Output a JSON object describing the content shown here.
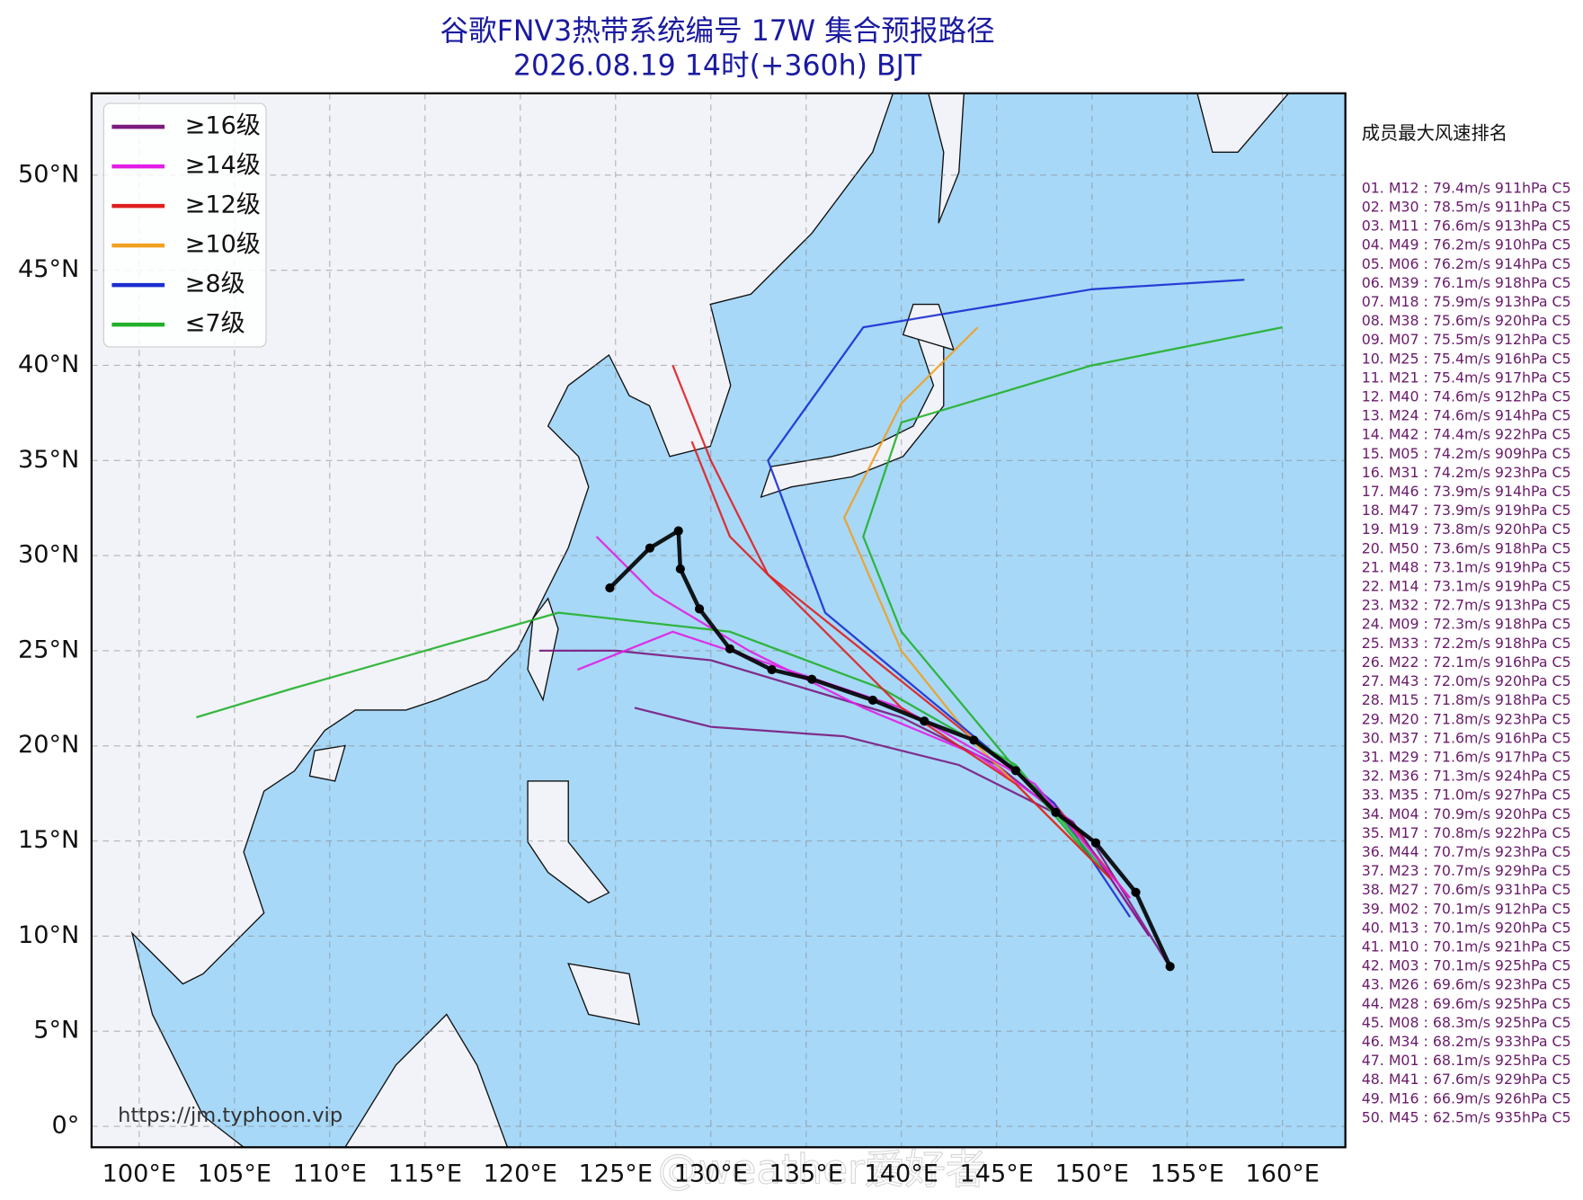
{
  "title": "谷歌FNV3热带系统编号 17W 集合预报路径",
  "subtitle": "2026.08.19 14时(+360h) BJT",
  "legend": [
    {
      "name": "≥16级",
      "color": "#7b1b7e"
    },
    {
      "name": "≥14级",
      "color": "#e21ee6"
    },
    {
      "name": "≥12级",
      "color": "#e01f1f"
    },
    {
      "name": "≥10级",
      "color": "#f0a020"
    },
    {
      "name": "≥8级",
      "color": "#1a2fd0"
    },
    {
      "name": "≤7级",
      "color": "#22b02a"
    }
  ],
  "xlim": [
    97.5,
    163.3
  ],
  "ylim": [
    -1.1,
    54.3
  ],
  "xticks": [
    {
      "value": 100,
      "label": "100°E"
    },
    {
      "value": 105,
      "label": "105°E"
    },
    {
      "value": 110,
      "label": "110°E"
    },
    {
      "value": 115,
      "label": "115°E"
    },
    {
      "value": 120,
      "label": "120°E"
    },
    {
      "value": 125,
      "label": "125°E"
    },
    {
      "value": 130,
      "label": "130°E"
    },
    {
      "value": 135,
      "label": "135°E"
    },
    {
      "value": 140,
      "label": "140°E"
    },
    {
      "value": 145,
      "label": "145°E"
    },
    {
      "value": 150,
      "label": "150°E"
    },
    {
      "value": 155,
      "label": "155°E"
    },
    {
      "value": 160,
      "label": "160°E"
    }
  ],
  "yticks": [
    {
      "value": 0,
      "label": "0°"
    },
    {
      "value": 5,
      "label": "5°N"
    },
    {
      "value": 10,
      "label": "10°N"
    },
    {
      "value": 15,
      "label": "15°N"
    },
    {
      "value": 20,
      "label": "20°N"
    },
    {
      "value": 25,
      "label": "25°N"
    },
    {
      "value": 30,
      "label": "30°N"
    },
    {
      "value": 35,
      "label": "35°N"
    },
    {
      "value": 40,
      "label": "40°N"
    },
    {
      "value": 45,
      "label": "45°N"
    },
    {
      "value": 50,
      "label": "50°N"
    }
  ],
  "grid": true,
  "tracks": [
    {
      "color": "#7b1b7e",
      "lon": [
        154,
        150,
        145,
        140,
        135,
        130,
        125,
        121
      ],
      "lat": [
        8.5,
        15,
        19,
        21.5,
        23,
        24.5,
        25,
        25
      ]
    },
    {
      "color": "#e21ee6",
      "lon": [
        153,
        149,
        144,
        138,
        132,
        127,
        124
      ],
      "lat": [
        10,
        16,
        19.5,
        22,
        25,
        28,
        31
      ]
    },
    {
      "color": "#e01f1f",
      "lon": [
        152,
        148,
        143,
        138,
        133,
        130,
        128
      ],
      "lat": [
        12,
        17,
        21,
        25,
        29,
        35,
        40
      ]
    },
    {
      "color": "#f0a020",
      "lon": [
        151,
        148,
        144,
        140,
        137,
        140,
        144
      ],
      "lat": [
        13,
        16,
        20,
        25,
        32,
        38,
        42
      ]
    },
    {
      "color": "#1a2fd0",
      "lon": [
        152,
        148,
        142,
        136,
        133,
        138,
        150,
        158
      ],
      "lat": [
        11,
        17,
        22,
        27,
        35,
        42,
        44,
        44.5
      ]
    },
    {
      "color": "#22b02a",
      "lon": [
        151,
        146,
        139,
        131,
        122,
        115,
        108,
        103
      ],
      "lat": [
        13,
        19,
        23,
        26,
        27,
        25,
        23,
        21.5
      ]
    },
    {
      "color": "#7b1b7e",
      "lon": [
        153,
        149,
        143,
        137,
        130,
        126
      ],
      "lat": [
        10,
        16,
        19,
        20.5,
        21,
        22
      ]
    },
    {
      "color": "#e21ee6",
      "lon": [
        152,
        147,
        140,
        134,
        128,
        123
      ],
      "lat": [
        12,
        18,
        22,
        24,
        26,
        24
      ]
    },
    {
      "color": "#22b02a",
      "lon": [
        150,
        145,
        140,
        138,
        140,
        150,
        160
      ],
      "lat": [
        14,
        20,
        26,
        31,
        37,
        40,
        42
      ]
    },
    {
      "color": "#e01f1f",
      "lon": [
        151,
        146,
        140,
        135,
        131,
        129
      ],
      "lat": [
        13,
        18,
        22,
        27,
        31,
        36
      ]
    }
  ],
  "mean_track": {
    "color": "#000000",
    "lon": [
      154.1,
      152.3,
      150.2,
      148.1,
      146.0,
      143.8,
      141.2,
      138.5,
      135.3,
      133.2,
      131.0,
      129.4,
      128.4,
      128.3,
      126.8,
      124.7
    ],
    "lat": [
      8.4,
      12.3,
      14.9,
      16.5,
      18.7,
      20.3,
      21.3,
      22.4,
      23.5,
      24.0,
      25.1,
      27.2,
      29.3,
      31.3,
      30.4,
      28.3
    ]
  },
  "ranking": {
    "title": "成员最大风速排名",
    "rows": [
      "01. M12 : 79.4m/s 911hPa C5",
      "02. M30 : 78.5m/s 911hPa C5",
      "03. M11 : 76.6m/s 913hPa C5",
      "04. M49 : 76.2m/s 910hPa C5",
      "05. M06 : 76.2m/s 914hPa C5",
      "06. M39 : 76.1m/s 918hPa C5",
      "07. M18 : 75.9m/s 913hPa C5",
      "08. M38 : 75.6m/s 920hPa C5",
      "09. M07 : 75.5m/s 912hPa C5",
      "10. M25 : 75.4m/s 916hPa C5",
      "11. M21 : 75.4m/s 917hPa C5",
      "12. M40 : 74.6m/s 912hPa C5",
      "13. M24 : 74.6m/s 914hPa C5",
      "14. M42 : 74.4m/s 922hPa C5",
      "15. M05 : 74.2m/s 909hPa C5",
      "16. M31 : 74.2m/s 923hPa C5",
      "17. M46 : 73.9m/s 914hPa C5",
      "18. M47 : 73.9m/s 919hPa C5",
      "19. M19 : 73.8m/s 920hPa C5",
      "20. M50 : 73.6m/s 918hPa C5",
      "21. M48 : 73.1m/s 919hPa C5",
      "22. M14 : 73.1m/s 919hPa C5",
      "23. M32 : 72.7m/s 913hPa C5",
      "24. M09 : 72.3m/s 918hPa C5",
      "25. M33 : 72.2m/s 918hPa C5",
      "26. M22 : 72.1m/s 916hPa C5",
      "27. M43 : 72.0m/s 920hPa C5",
      "28. M15 : 71.8m/s 918hPa C5",
      "29. M20 : 71.8m/s 923hPa C5",
      "30. M37 : 71.6m/s 916hPa C5",
      "31. M29 : 71.6m/s 917hPa C5",
      "32. M36 : 71.3m/s 924hPa C5",
      "33. M35 : 71.0m/s 927hPa C5",
      "34. M04 : 70.9m/s 920hPa C5",
      "35. M17 : 70.8m/s 922hPa C5",
      "36. M44 : 70.7m/s 923hPa C5",
      "37. M23 : 70.7m/s 929hPa C5",
      "38. M27 : 70.6m/s 931hPa C5",
      "39. M02 : 70.1m/s 912hPa C5",
      "40. M13 : 70.1m/s 920hPa C5",
      "41. M10 : 70.1m/s 921hPa C5",
      "42. M03 : 70.1m/s 925hPa C5",
      "43. M26 : 69.6m/s 923hPa C5",
      "44. M28 : 69.6m/s 925hPa C5",
      "45. M08 : 68.3m/s 925hPa C5",
      "46. M34 : 68.2m/s 933hPa C5",
      "47. M01 : 68.1m/s 925hPa C5",
      "48. M41 : 67.6m/s 929hPa C5",
      "49. M16 : 66.9m/s 926hPa C5",
      "50. M45 : 62.5m/s 935hPa C5"
    ]
  },
  "source": "https://jm.typhoon.vip",
  "watermark": "@weather爱好者"
}
